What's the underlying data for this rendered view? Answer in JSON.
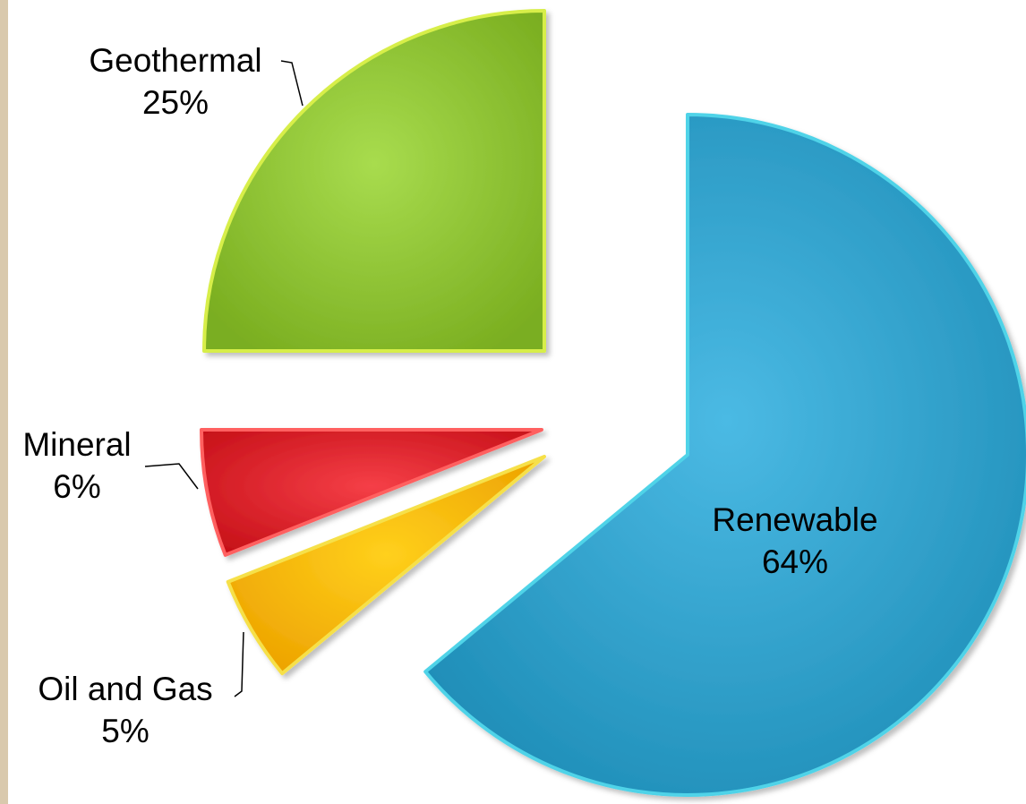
{
  "chart_data": {
    "type": "pie",
    "title": "",
    "exploded": true,
    "slices": [
      {
        "name": "Renewable",
        "percent_label": "64%",
        "value": 64,
        "color": "#2f9ec8",
        "edge": "#4fd3e8",
        "label_position": "inside"
      },
      {
        "name": "Oil and Gas",
        "percent_label": "5%",
        "value": 5,
        "color": "#ffb400",
        "edge": "#f6e04a",
        "label_position": "outside"
      },
      {
        "name": "Mineral",
        "percent_label": "6%",
        "value": 6,
        "color": "#d9232b",
        "edge": "#ff6060",
        "label_position": "outside"
      },
      {
        "name": "Geothermal",
        "percent_label": "25%",
        "value": 25,
        "color": "#8cc032",
        "edge": "#d7ee4a",
        "label_position": "outside"
      }
    ]
  }
}
